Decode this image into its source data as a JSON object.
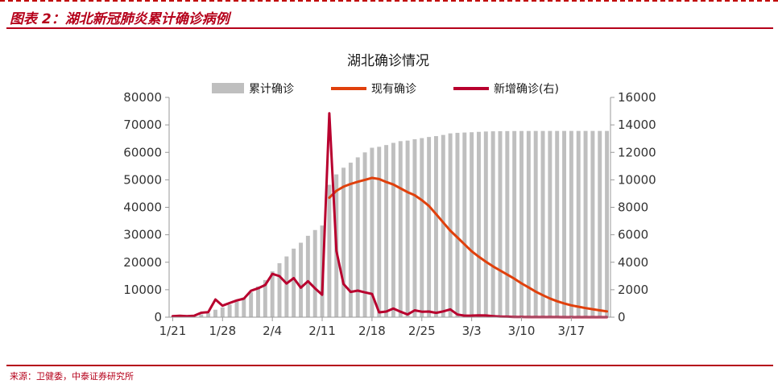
{
  "figure_title": "图表 2：湖北新冠肺炎累计确诊病例",
  "source": "来源：卫健委，中泰证券研究所",
  "colors": {
    "accent": "#b5001a",
    "cumulative": "#bfbfbf",
    "existing": "#e0400c",
    "new": "#b8002e"
  },
  "chart_data": {
    "type": "bar",
    "title": "湖北确诊情况",
    "legend_position": "top",
    "grid": false,
    "x": [
      "1/21",
      "1/22",
      "1/23",
      "1/24",
      "1/25",
      "1/26",
      "1/27",
      "1/28",
      "1/29",
      "1/30",
      "1/31",
      "2/1",
      "2/2",
      "2/3",
      "2/4",
      "2/5",
      "2/6",
      "2/7",
      "2/8",
      "2/9",
      "2/10",
      "2/11",
      "2/12",
      "2/13",
      "2/14",
      "2/15",
      "2/16",
      "2/17",
      "2/18",
      "2/19",
      "2/20",
      "2/21",
      "2/22",
      "2/23",
      "2/24",
      "2/25",
      "2/26",
      "2/27",
      "2/28",
      "2/29",
      "3/1",
      "3/2",
      "3/3",
      "3/4",
      "3/5",
      "3/6",
      "3/7",
      "3/8",
      "3/9",
      "3/10",
      "3/11",
      "3/12",
      "3/13",
      "3/14",
      "3/15",
      "3/16",
      "3/17",
      "3/18",
      "3/19",
      "3/20",
      "3/21",
      "3/22"
    ],
    "x_tick_labels": [
      "1/21",
      "1/28",
      "2/4",
      "2/11",
      "2/18",
      "2/25",
      "3/3",
      "3/10",
      "3/17"
    ],
    "y_left": {
      "ticks": [
        0,
        10000,
        20000,
        30000,
        40000,
        50000,
        60000,
        70000,
        80000
      ],
      "ylim": [
        0,
        80000
      ]
    },
    "y_right": {
      "ticks": [
        0,
        2000,
        4000,
        6000,
        8000,
        10000,
        12000,
        14000,
        16000
      ],
      "ylim": [
        0,
        16000
      ]
    },
    "series": [
      {
        "name": "累计确诊",
        "type": "bar",
        "axis": "left",
        "values": [
          270,
          375,
          444,
          549,
          1052,
          1423,
          2714,
          3554,
          4586,
          5806,
          7153,
          9074,
          11177,
          13522,
          16678,
          19665,
          22112,
          24953,
          27100,
          29631,
          31728,
          33366,
          48206,
          51986,
          54406,
          56249,
          58182,
          59989,
          61682,
          62031,
          62662,
          63454,
          64084,
          64287,
          64786,
          65187,
          65596,
          65914,
          66337,
          66907,
          67103,
          67217,
          67332,
          67466,
          67592,
          67666,
          67707,
          67743,
          67760,
          67773,
          67781,
          67786,
          67790,
          67794,
          67798,
          67799,
          67800,
          67800,
          67800,
          67800,
          67800,
          67800
        ]
      },
      {
        "name": "现有确诊",
        "type": "line",
        "axis": "left",
        "values": [
          null,
          null,
          null,
          null,
          null,
          null,
          null,
          null,
          null,
          null,
          null,
          null,
          null,
          null,
          null,
          null,
          null,
          null,
          null,
          null,
          null,
          null,
          43500,
          46000,
          47500,
          48500,
          49300,
          50000,
          50700,
          50300,
          49200,
          48300,
          46900,
          45500,
          44400,
          42600,
          40500,
          37500,
          34500,
          31500,
          29000,
          26500,
          24000,
          22000,
          20200,
          18500,
          17000,
          15500,
          14000,
          12300,
          10800,
          9300,
          8000,
          6800,
          5800,
          5000,
          4300,
          3800,
          3300,
          2900,
          2500,
          2100
        ]
      },
      {
        "name": "新增确诊(右)",
        "type": "line",
        "axis": "right",
        "values": [
          70,
          105,
          69,
          105,
          320,
          371,
          1291,
          840,
          1032,
          1220,
          1347,
          1921,
          2103,
          2345,
          3156,
          2987,
          2447,
          2841,
          2147,
          2618,
          2097,
          1638,
          14840,
          4823,
          2420,
          1843,
          1933,
          1807,
          1693,
          349,
          411,
          631,
          398,
          202,
          499,
          401,
          409,
          318,
          423,
          570,
          196,
          114,
          115,
          134,
          126,
          74,
          41,
          36,
          17,
          13,
          8,
          5,
          4,
          4,
          4,
          1,
          1,
          0,
          0,
          0,
          0,
          0
        ]
      }
    ]
  }
}
